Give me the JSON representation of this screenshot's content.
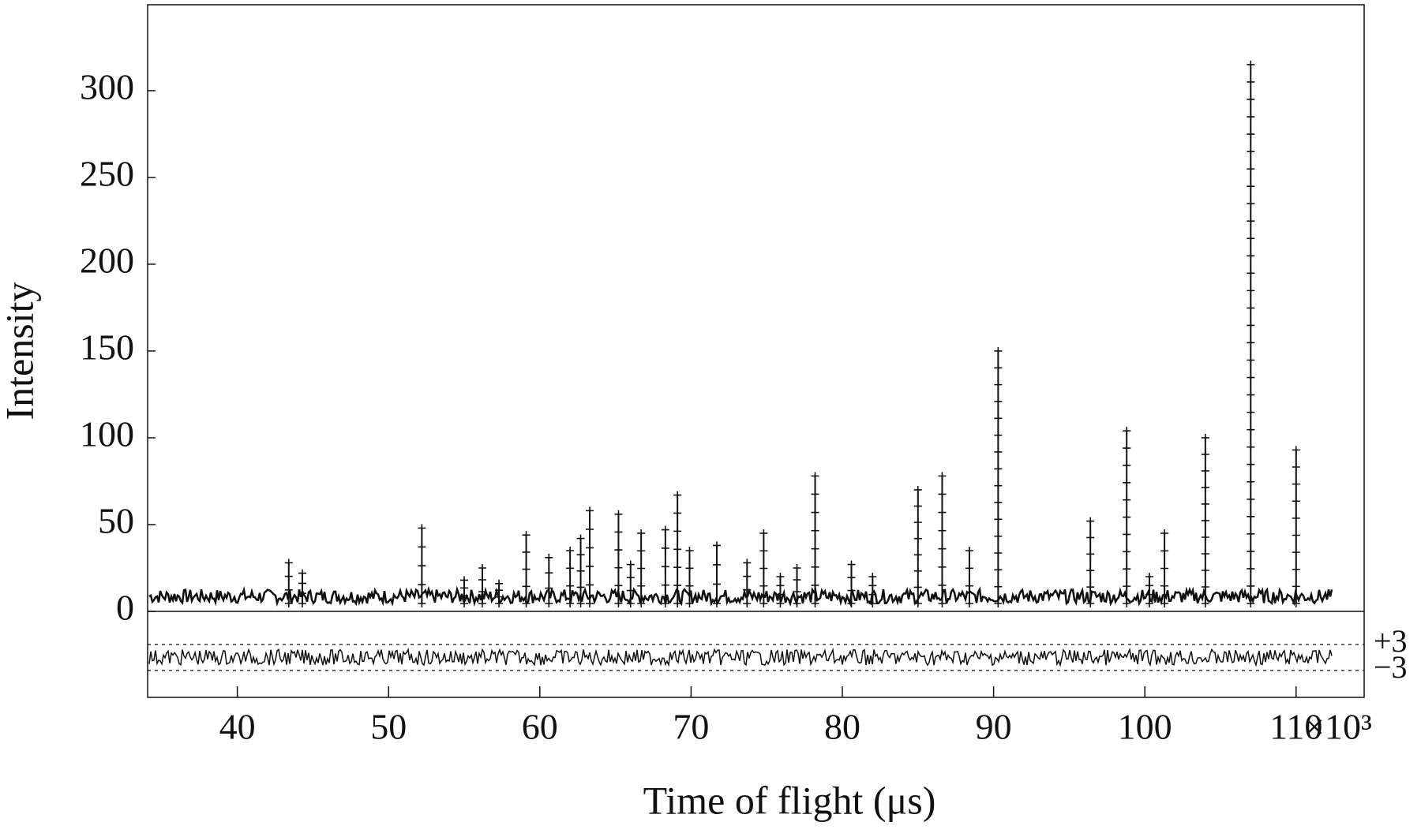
{
  "chart_data": {
    "type": "stem",
    "x_label": "Time of flight (μs)",
    "y_label": "Intensity",
    "x_scale_label": "×10³",
    "x": [
      43.4,
      44.3,
      52.2,
      55.0,
      56.2,
      57.3,
      59.1,
      60.6,
      62.0,
      62.7,
      63.3,
      65.2,
      66.0,
      66.7,
      68.3,
      69.1,
      69.9,
      71.7,
      73.7,
      74.8,
      75.9,
      77.0,
      78.2,
      80.6,
      82.0,
      85.0,
      86.6,
      88.4,
      90.3,
      96.4,
      98.8,
      100.3,
      101.3,
      104.0,
      107.0,
      110.0
    ],
    "values": [
      28,
      22,
      48,
      18,
      25,
      16,
      44,
      31,
      35,
      42,
      58,
      56,
      27,
      45,
      47,
      67,
      35,
      38,
      28,
      45,
      20,
      25,
      78,
      27,
      20,
      70,
      78,
      35,
      150,
      52,
      104,
      20,
      45,
      100,
      315,
      93
    ],
    "color": "#111111",
    "xlim": [
      34.07,
      114.5
    ],
    "ylim": [
      0,
      349.5
    ],
    "xticks": [
      40,
      50,
      60,
      70,
      80,
      90,
      100,
      110
    ],
    "yticks": [
      0,
      50,
      100,
      150,
      200,
      250,
      300
    ],
    "difference": {
      "ylim": [
        -9.2,
        10.6
      ],
      "yticks": [
        {
          "value": 3,
          "label": "+3"
        },
        {
          "value": -3,
          "label": "−3"
        }
      ]
    }
  }
}
